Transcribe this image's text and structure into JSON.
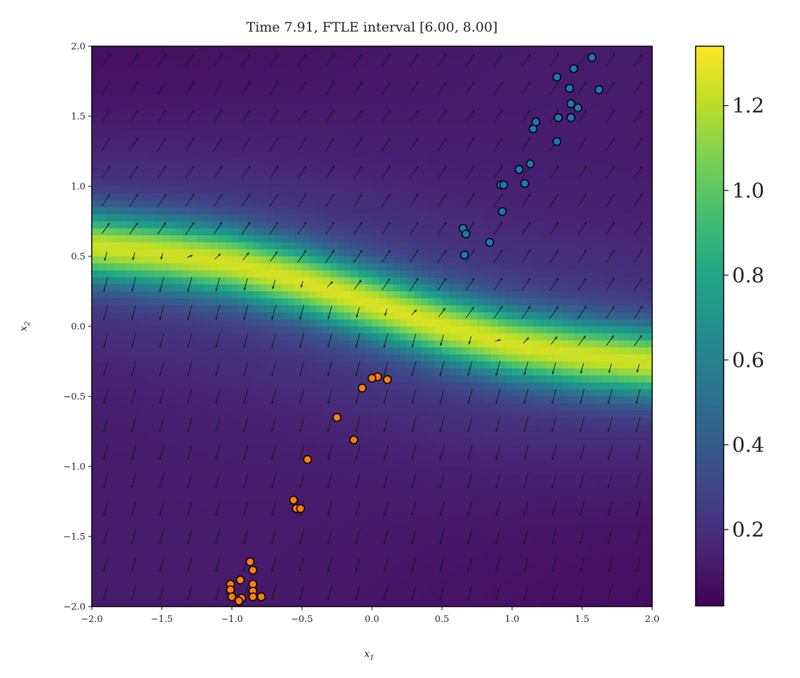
{
  "chart_data": {
    "type": "heatmap",
    "title": "Time 7.91, FTLE interval [6.00, 8.00]",
    "xlabel": "x",
    "xlabel_sub": "1",
    "ylabel": "x",
    "ylabel_sub": "2",
    "xlim": [
      -2.0,
      2.0
    ],
    "ylim": [
      -2.0,
      2.0
    ],
    "xticks": [
      -2.0,
      -1.5,
      -1.0,
      -0.5,
      0.0,
      0.5,
      1.0,
      1.5,
      2.0
    ],
    "yticks": [
      -2.0,
      -1.5,
      -1.0,
      -0.5,
      0.0,
      0.5,
      1.0,
      1.5,
      2.0
    ],
    "colormap": "viridis",
    "colorbar": {
      "range": [
        0.02,
        1.34
      ],
      "ticks": [
        0.2,
        0.4,
        0.6,
        0.8,
        1.0,
        1.2
      ]
    },
    "ftle_ridge": {
      "description_points_x": [
        -2.0,
        -1.5,
        -1.0,
        -0.5,
        0.0,
        0.5,
        1.0,
        1.5,
        2.0
      ],
      "description_points_y": [
        0.57,
        0.52,
        0.45,
        0.32,
        0.16,
        0.0,
        -0.13,
        -0.21,
        -0.26
      ],
      "peak_value": 1.3,
      "background_value": 0.12
    },
    "scatter_series": [
      {
        "color": "#1f77b4",
        "points": [
          [
            1.57,
            1.92
          ],
          [
            1.44,
            1.84
          ],
          [
            1.32,
            1.78
          ],
          [
            1.41,
            1.7
          ],
          [
            1.62,
            1.69
          ],
          [
            1.42,
            1.59
          ],
          [
            1.47,
            1.56
          ],
          [
            1.33,
            1.49
          ],
          [
            1.42,
            1.49
          ],
          [
            1.17,
            1.46
          ],
          [
            1.15,
            1.41
          ],
          [
            1.32,
            1.32
          ],
          [
            1.13,
            1.16
          ],
          [
            1.05,
            1.12
          ],
          [
            0.92,
            1.01
          ],
          [
            0.94,
            1.01
          ],
          [
            1.09,
            1.02
          ],
          [
            0.93,
            0.82
          ],
          [
            0.65,
            0.7
          ],
          [
            0.67,
            0.66
          ],
          [
            0.84,
            0.6
          ],
          [
            0.66,
            0.51
          ]
        ]
      },
      {
        "color": "#ff7f0e",
        "points": [
          [
            0.11,
            -0.38
          ],
          [
            0.04,
            -0.36
          ],
          [
            0.0,
            -0.37
          ],
          [
            -0.07,
            -0.44
          ],
          [
            -0.25,
            -0.65
          ],
          [
            -0.13,
            -0.81
          ],
          [
            -0.46,
            -0.95
          ],
          [
            -0.56,
            -1.24
          ],
          [
            -0.54,
            -1.3
          ],
          [
            -0.51,
            -1.3
          ],
          [
            -0.87,
            -1.68
          ],
          [
            -0.85,
            -1.74
          ],
          [
            -0.94,
            -1.81
          ],
          [
            -1.01,
            -1.84
          ],
          [
            -0.85,
            -1.84
          ],
          [
            -1.01,
            -1.88
          ],
          [
            -0.85,
            -1.89
          ],
          [
            -0.93,
            -1.94
          ],
          [
            -0.85,
            -1.93
          ],
          [
            -1.0,
            -1.93
          ],
          [
            -0.79,
            -1.93
          ],
          [
            -0.95,
            -1.96
          ]
        ]
      }
    ]
  }
}
